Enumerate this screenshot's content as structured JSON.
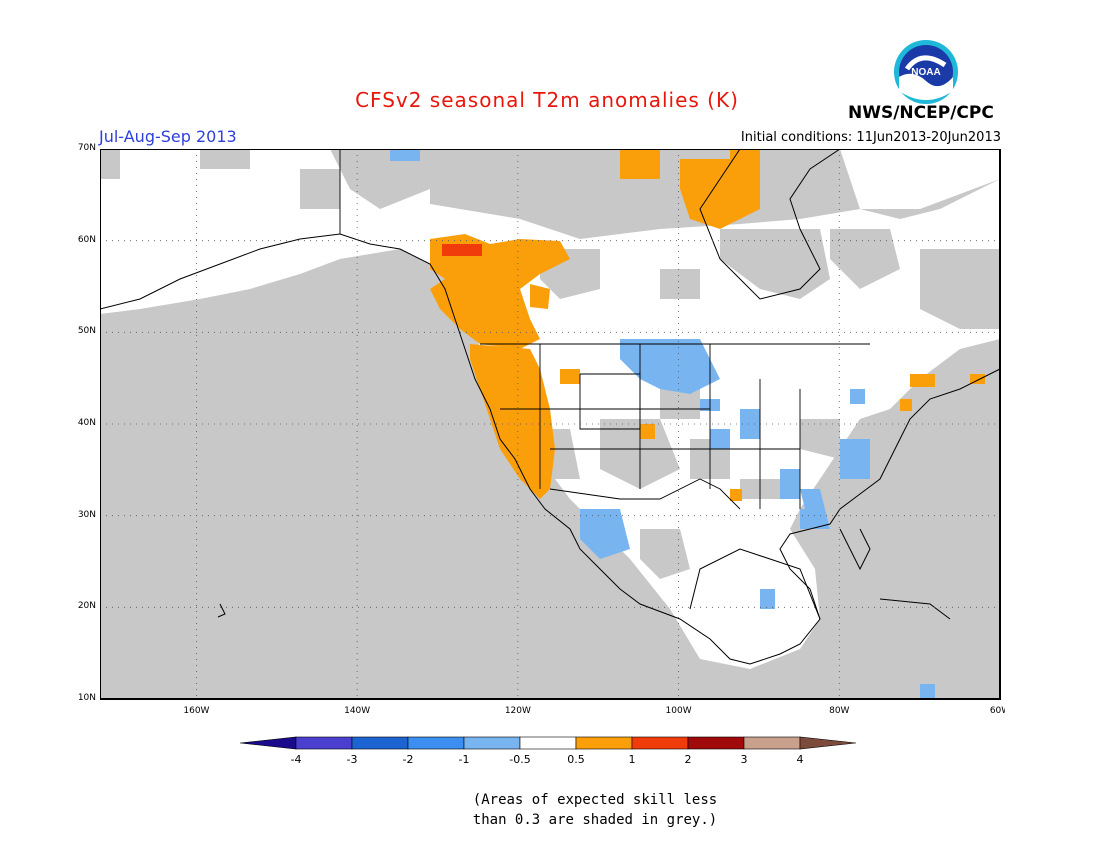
{
  "header": {
    "title": "CFSv2 seasonal T2m anomalies (K)",
    "season": "Jul-Aug-Sep 2013",
    "initial_conditions": "Initial conditions: 11Jun2013-20Jun2013",
    "agency": "NWS/NCEP/CPC",
    "logo_text": "NOAA",
    "title_color": "#e8170c",
    "season_color": "#2d3fdc"
  },
  "map": {
    "lon_labels": [
      "160W",
      "140W",
      "120W",
      "100W",
      "80W",
      "60W"
    ],
    "lat_labels": [
      "70N",
      "60N",
      "50N",
      "40N",
      "30N",
      "20N",
      "10N"
    ],
    "extent": {
      "lon_min": -172,
      "lon_max": -60,
      "lat_min": 10,
      "lat_max": 70
    },
    "background_grey": "#c8c8c8"
  },
  "legend": {
    "tick_labels": [
      "-4",
      "-3",
      "-2",
      "-1",
      "-0.5",
      "0.5",
      "1",
      "2",
      "3",
      "4"
    ],
    "bins": [
      {
        "color": "#1a0a8c"
      },
      {
        "color": "#4b3fd0"
      },
      {
        "color": "#1c64d2"
      },
      {
        "color": "#3c8ef0"
      },
      {
        "color": "#78b4f0"
      },
      {
        "color": "#ffffff"
      },
      {
        "color": "#fa9f0a"
      },
      {
        "color": "#f03c0a"
      },
      {
        "color": "#a00a0a"
      },
      {
        "color": "#c8a08c"
      },
      {
        "color": "#7d4b3c"
      }
    ]
  },
  "note": {
    "line1": "(Areas of expected skill less",
    "line2": "than 0.3 are shaded in grey.)"
  }
}
